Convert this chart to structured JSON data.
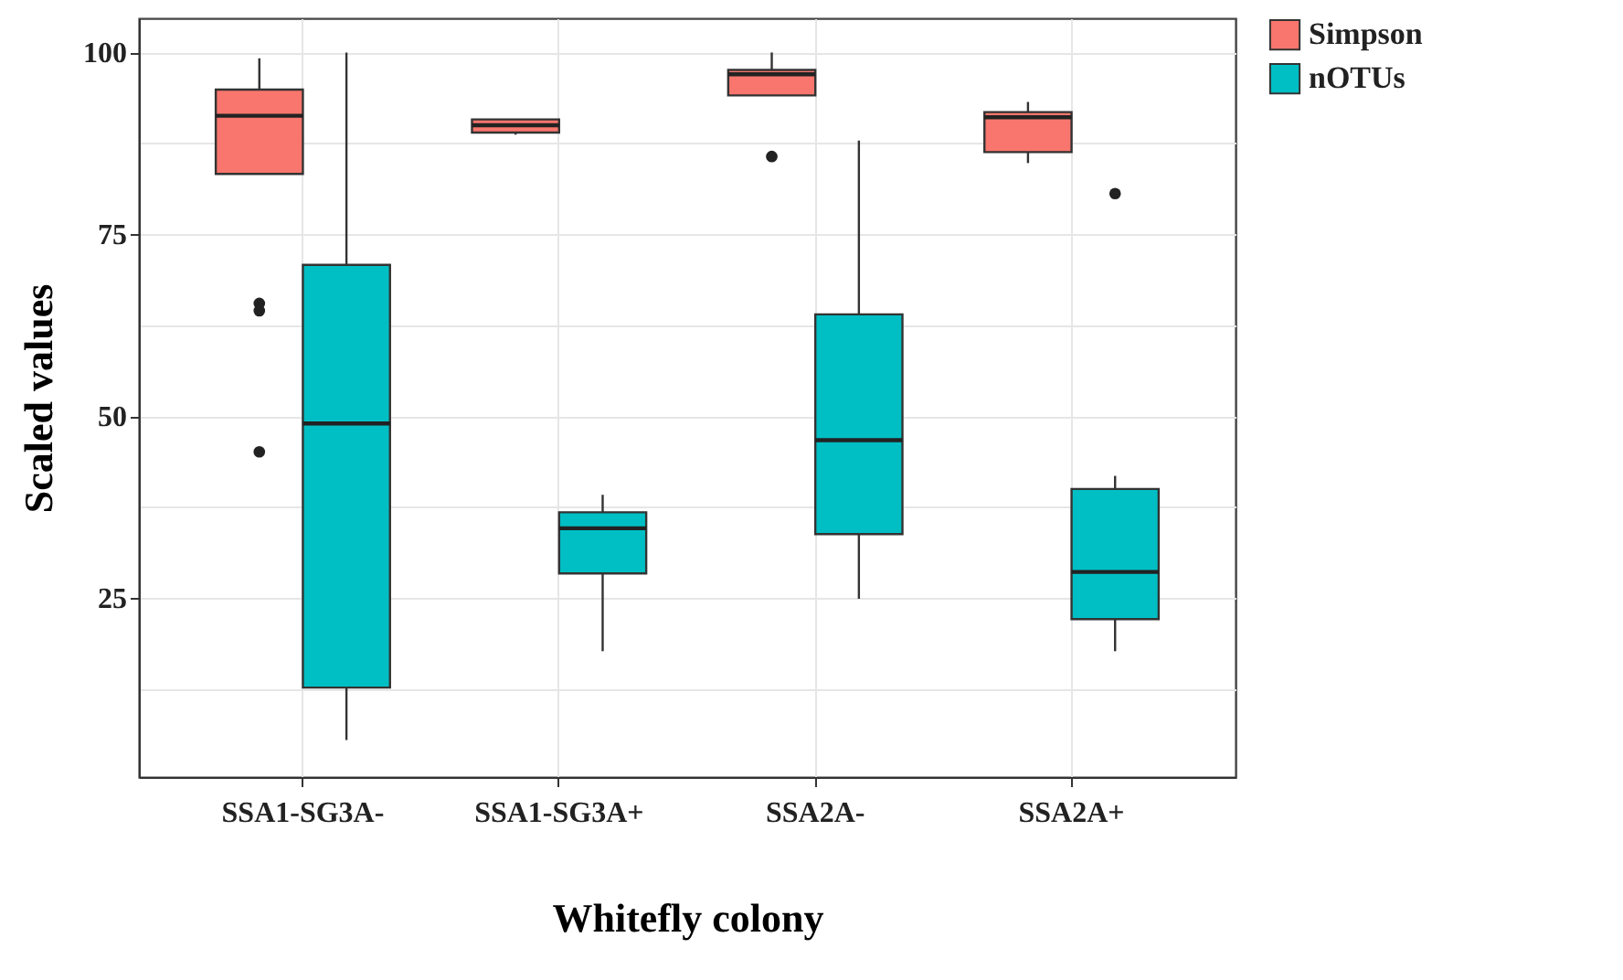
{
  "chart_data": {
    "type": "box",
    "xlabel": "Whitefly colony",
    "ylabel": "Scaled values",
    "categories": [
      "SSA1-SG3A-",
      "SSA1-SG3A+",
      "SSA2A-",
      "SSA2A+"
    ],
    "series": [
      {
        "name": "Simpson",
        "color": "#f8766d",
        "boxes": [
          {
            "low": 83.3,
            "q1": 83.3,
            "median": 91.3,
            "q3": 94.9,
            "high": 99.2,
            "outliers": [
              65.5,
              64.5,
              45.1
            ]
          },
          {
            "low": 88.7,
            "q1": 89.0,
            "median": 90.0,
            "q3": 90.8,
            "high": 90.8
          },
          {
            "low": 94.1,
            "q1": 94.1,
            "median": 97.0,
            "q3": 97.6,
            "high": 100.0,
            "outliers": [
              85.7
            ]
          },
          {
            "low": 84.8,
            "q1": 86.3,
            "median": 91.1,
            "q3": 91.8,
            "high": 93.2
          }
        ]
      },
      {
        "name": "nOTUs",
        "color": "#00bfc4",
        "boxes": [
          {
            "low": 5.5,
            "q1": 12.7,
            "median": 49.0,
            "q3": 70.8,
            "high": 100.0
          },
          {
            "low": 17.7,
            "q1": 28.4,
            "median": 34.6,
            "q3": 36.8,
            "high": 39.2
          },
          {
            "low": 24.9,
            "q1": 33.8,
            "median": 46.7,
            "q3": 64.0,
            "high": 87.9
          },
          {
            "low": 17.7,
            "q1": 22.1,
            "median": 28.6,
            "q3": 40.0,
            "high": 41.8,
            "outliers": [
              80.6
            ]
          }
        ]
      }
    ],
    "ylim": [
      0.4,
      104.7
    ],
    "yticks": [
      {
        "value": 12.5,
        "label": null
      },
      25,
      {
        "value": 37.5,
        "label": null
      },
      50,
      {
        "value": 62.5,
        "label": null
      },
      75,
      {
        "value": 87.5,
        "label": null
      },
      100
    ],
    "grid": true,
    "legend": "right"
  }
}
